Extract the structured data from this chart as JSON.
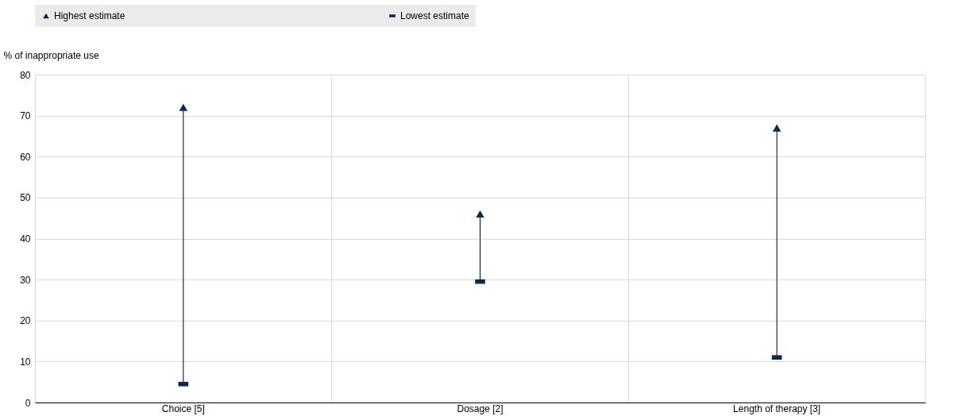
{
  "chart_data": {
    "type": "scatter",
    "ylabel": "% of inappropriate use",
    "categories": [
      "Choice [5]",
      "Dosage [2]",
      "Length of therapy [3]"
    ],
    "series": [
      {
        "name": "Highest estimate",
        "color": "#0b2a57",
        "marker": "triangle",
        "values": [
          72,
          46,
          67
        ]
      },
      {
        "name": "Lowest estimate",
        "color": "#0b2a57",
        "values": [
          4.5,
          29.5,
          11
        ]
      }
    ],
    "ylim": [
      0,
      80
    ],
    "yticks": [
      0,
      10,
      20,
      30,
      40,
      50,
      60,
      70,
      80
    ],
    "grid": true,
    "legend": "top"
  }
}
